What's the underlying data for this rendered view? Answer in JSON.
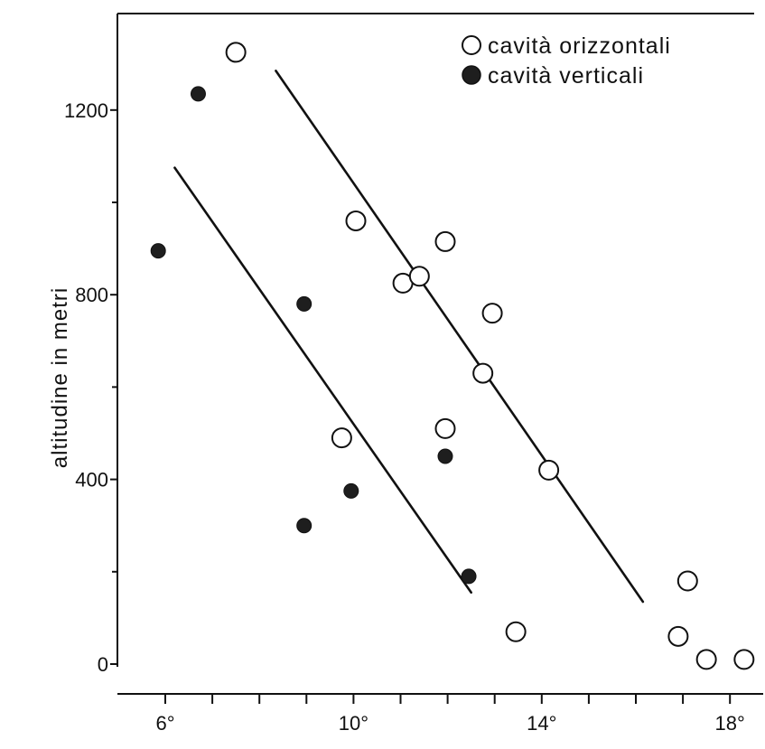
{
  "chart_data": {
    "type": "scatter",
    "title": "",
    "xlabel": "",
    "ylabel": "altitudine in metri",
    "xlim": [
      5,
      18.7
    ],
    "ylim": [
      -40,
      1400
    ],
    "grid": false,
    "legend": "top-right",
    "x_ticks": [
      {
        "value": 6,
        "label": "6°"
      },
      {
        "value": 10,
        "label": "10°"
      },
      {
        "value": 14,
        "label": "14°"
      },
      {
        "value": 18,
        "label": "18°"
      }
    ],
    "x_minor_ticks": [
      7,
      8,
      9,
      11,
      12,
      13,
      15,
      16,
      17
    ],
    "y_ticks": [
      {
        "value": 0,
        "label": "0"
      },
      {
        "value": 400,
        "label": "400"
      },
      {
        "value": 800,
        "label": "800"
      },
      {
        "value": 1200,
        "label": "1200"
      }
    ],
    "y_minor_ticks": [
      200,
      600,
      1000
    ],
    "series": [
      {
        "name": "cavità orizzontali",
        "marker": "open-circle",
        "points": [
          {
            "x": 7.5,
            "y": 1325
          },
          {
            "x": 10.05,
            "y": 960
          },
          {
            "x": 11.95,
            "y": 915
          },
          {
            "x": 11.05,
            "y": 825
          },
          {
            "x": 11.4,
            "y": 840
          },
          {
            "x": 12.95,
            "y": 760
          },
          {
            "x": 12.75,
            "y": 630
          },
          {
            "x": 11.95,
            "y": 510
          },
          {
            "x": 9.75,
            "y": 490
          },
          {
            "x": 14.15,
            "y": 420
          },
          {
            "x": 13.45,
            "y": 70
          },
          {
            "x": 17.1,
            "y": 180
          },
          {
            "x": 16.9,
            "y": 60
          },
          {
            "x": 17.5,
            "y": 10
          },
          {
            "x": 18.3,
            "y": 10
          }
        ]
      },
      {
        "name": "cavità verticali",
        "marker": "filled-circle",
        "points": [
          {
            "x": 6.7,
            "y": 1235
          },
          {
            "x": 5.85,
            "y": 895
          },
          {
            "x": 8.95,
            "y": 780
          },
          {
            "x": 11.95,
            "y": 450
          },
          {
            "x": 9.95,
            "y": 375
          },
          {
            "x": 8.95,
            "y": 300
          },
          {
            "x": 12.45,
            "y": 190
          }
        ]
      }
    ],
    "trend_lines": [
      {
        "from": {
          "x": 6.2,
          "y": 1075
        },
        "to": {
          "x": 12.5,
          "y": 155
        }
      },
      {
        "from": {
          "x": 8.35,
          "y": 1285
        },
        "to": {
          "x": 16.15,
          "y": 135
        }
      }
    ],
    "colors": {
      "line": "#111111",
      "filled_marker": "#1e1e1e",
      "open_marker_fill": "#ffffff"
    }
  }
}
